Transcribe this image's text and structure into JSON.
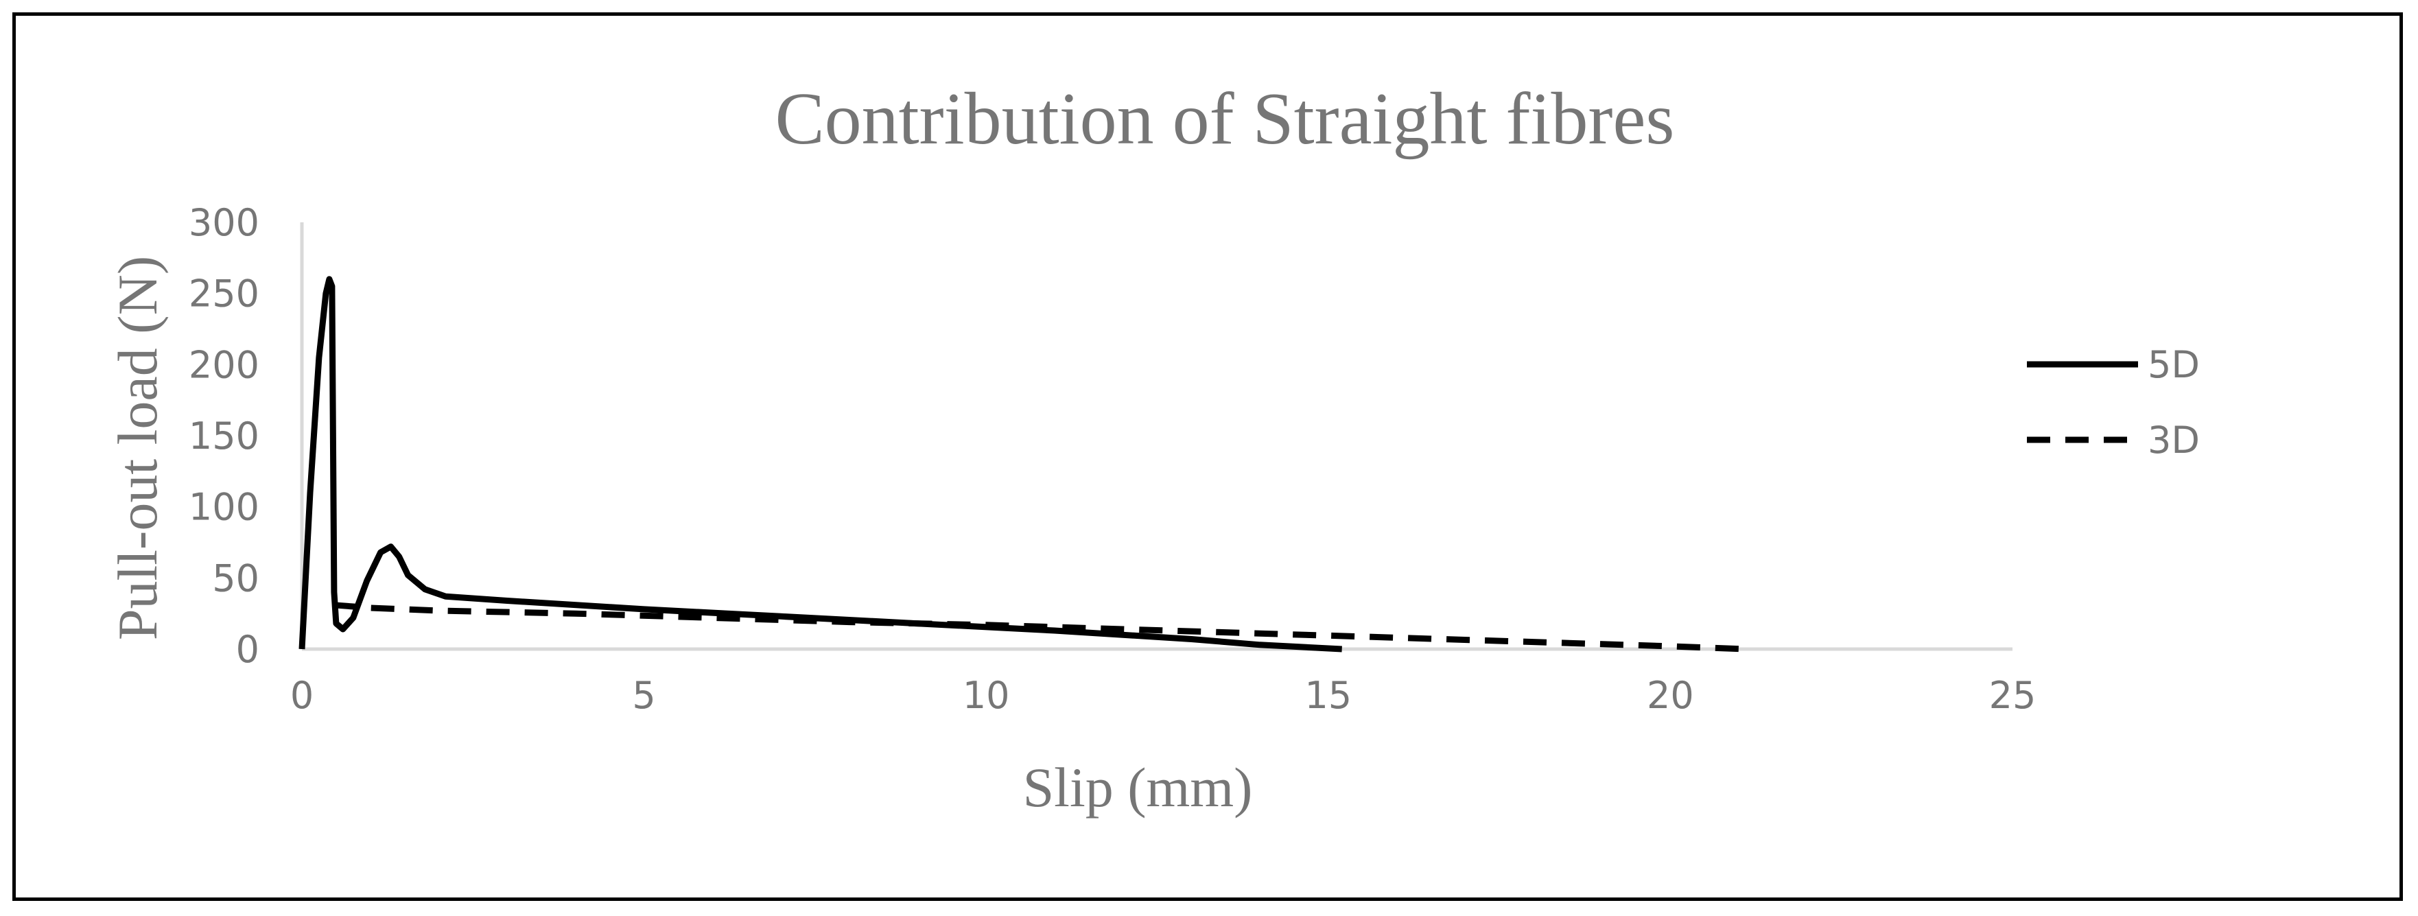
{
  "chart_data": {
    "type": "line",
    "title": "Contribution of Straight fibres",
    "xlabel": "Slip (mm)",
    "ylabel": "Pull-out load (N)",
    "xlim": [
      0,
      25
    ],
    "ylim": [
      0,
      300
    ],
    "xticks": [
      0,
      5,
      10,
      15,
      20,
      25
    ],
    "yticks": [
      0,
      50,
      100,
      150,
      200,
      250,
      300
    ],
    "grid": false,
    "legend_position": "right",
    "series": [
      {
        "name": "5D",
        "style": "solid",
        "color": "#000000",
        "x": [
          0,
          0.12,
          0.25,
          0.35,
          0.4,
          0.44,
          0.47,
          0.5,
          0.6,
          0.75,
          0.95,
          1.15,
          1.3,
          1.42,
          1.55,
          1.8,
          2.1,
          3,
          5,
          7,
          9,
          11,
          13,
          14,
          15.2
        ],
        "y": [
          0,
          110,
          205,
          250,
          260,
          255,
          40,
          18,
          14,
          22,
          48,
          68,
          72,
          65,
          52,
          42,
          37,
          34,
          28,
          23,
          18,
          13,
          7,
          3,
          0
        ]
      },
      {
        "name": "3D",
        "style": "dashed",
        "color": "#000000",
        "x": [
          0.45,
          1,
          2,
          4,
          6,
          8,
          10,
          12,
          14,
          16,
          18,
          20,
          21.1
        ],
        "y": [
          31,
          29,
          27,
          25,
          22,
          19,
          17,
          14,
          11,
          8,
          5,
          2,
          0
        ]
      }
    ]
  }
}
